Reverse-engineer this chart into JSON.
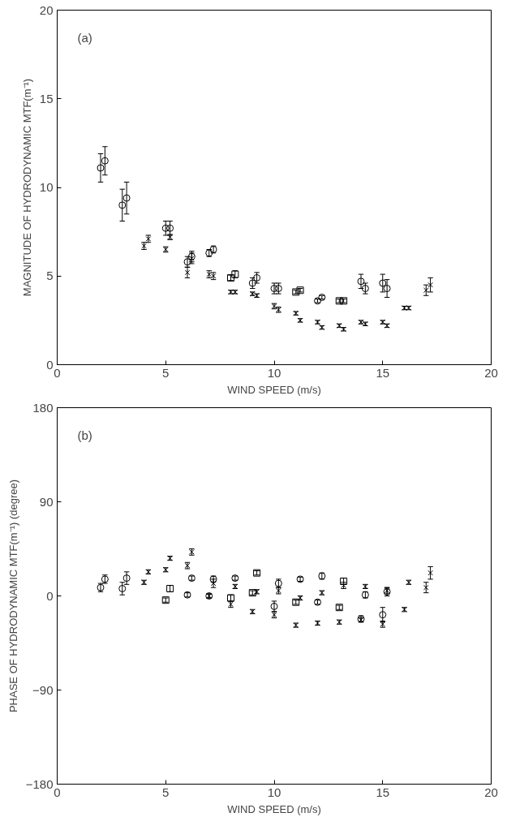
{
  "chart_data": [
    {
      "type": "scatter",
      "xlabel": "WIND SPEED (m/s)",
      "ylabel": "MAGNITUDE OF HYDRODYNAMIC MTF(m⁻¹)",
      "annotations": [
        "(a)"
      ],
      "xlim": [
        0,
        20
      ],
      "ylim": [
        0,
        20
      ],
      "xticks": [
        0,
        5,
        10,
        15,
        20
      ],
      "yticks": [
        0,
        5,
        10,
        15,
        20
      ],
      "grid": false,
      "series": [
        {
          "color": "#000000",
          "marker": "circle",
          "x": [
            2.0,
            2.2,
            3.0,
            3.2,
            5.0,
            5.2,
            6.0,
            6.2,
            7.0,
            7.2,
            9.0,
            9.2,
            10.0,
            10.2,
            12.0,
            12.2,
            14.0,
            14.2,
            15.0,
            15.2
          ],
          "values": [
            11.1,
            11.5,
            9.0,
            9.4,
            7.7,
            7.7,
            5.8,
            6.1,
            6.3,
            6.5,
            4.6,
            4.9,
            4.3,
            4.3,
            3.6,
            3.8,
            4.7,
            4.3,
            4.6,
            4.3
          ],
          "errors": [
            0.8,
            0.8,
            0.9,
            0.9,
            0.4,
            0.4,
            0.3,
            0.3,
            0.2,
            0.2,
            0.3,
            0.3,
            0.3,
            0.3,
            0.1,
            0.1,
            0.4,
            0.3,
            0.5,
            0.5
          ]
        },
        {
          "color": "#000000",
          "marker": "cross",
          "x": [
            4.0,
            4.2,
            5.0,
            5.2,
            6.0,
            6.2,
            7.0,
            7.2,
            8.0,
            8.2,
            9.0,
            9.2,
            10.0,
            10.2,
            11.0,
            11.2,
            12.0,
            12.2,
            13.0,
            13.2,
            14.0,
            14.2,
            15.0,
            15.2,
            16.0,
            16.2,
            17.0,
            17.2
          ],
          "values": [
            6.7,
            7.1,
            6.5,
            7.2,
            5.2,
            6.0,
            5.1,
            5.0,
            4.1,
            4.1,
            4.0,
            3.9,
            3.3,
            3.1,
            2.9,
            2.5,
            2.4,
            2.1,
            2.2,
            2.0,
            2.4,
            2.3,
            2.4,
            2.2,
            3.2,
            3.2,
            4.2,
            4.5
          ],
          "errors": [
            0.2,
            0.2,
            0.15,
            0.15,
            0.3,
            0.3,
            0.2,
            0.2,
            0.1,
            0.1,
            0.1,
            0.1,
            0.15,
            0.15,
            0.1,
            0.1,
            0.1,
            0.1,
            0.1,
            0.1,
            0.1,
            0.1,
            0.1,
            0.1,
            0.1,
            0.1,
            0.3,
            0.4
          ]
        },
        {
          "color": "#000000",
          "marker": "square",
          "x": [
            8.0,
            8.2,
            11.0,
            11.2,
            13.0,
            13.2
          ],
          "values": [
            4.9,
            5.1,
            4.1,
            4.2,
            3.6,
            3.6
          ],
          "errors": [
            0.15,
            0.2,
            0.1,
            0.1,
            0.1,
            0.1
          ]
        }
      ]
    },
    {
      "type": "scatter",
      "xlabel": "WIND SPEED (m/s)",
      "ylabel": "PHASE OF HYDRODYNAMIC MTF(m⁻¹) (degree)",
      "annotations": [
        "(b)"
      ],
      "xlim": [
        0,
        20
      ],
      "ylim": [
        -180,
        180
      ],
      "xticks": [
        0,
        5,
        10,
        15,
        20
      ],
      "yticks": [
        -180,
        -90,
        0,
        90,
        180
      ],
      "grid": false,
      "series": [
        {
          "color": "#000000",
          "marker": "circle",
          "x": [
            2.0,
            2.2,
            3.0,
            3.2,
            6.0,
            6.2,
            7.0,
            7.2,
            8.2,
            10.0,
            10.2,
            11.2,
            12.0,
            12.2,
            14.0,
            14.2,
            15.0,
            15.2
          ],
          "values": [
            8,
            16,
            7,
            17,
            1,
            17,
            0,
            16,
            17,
            -10,
            12,
            16,
            -6,
            19,
            -22,
            1,
            -18,
            4
          ],
          "errors": [
            4,
            4,
            6,
            6,
            2,
            2,
            2,
            3,
            2,
            5,
            4,
            2,
            2,
            3,
            3,
            3,
            7,
            4
          ]
        },
        {
          "color": "#000000",
          "marker": "cross",
          "x": [
            4.0,
            4.2,
            5.0,
            5.2,
            6.0,
            6.2,
            7.0,
            7.2,
            8.0,
            8.2,
            9.0,
            9.2,
            10.0,
            10.2,
            11.0,
            11.2,
            12.0,
            12.2,
            13.0,
            13.2,
            14.0,
            14.2,
            15.0,
            15.2,
            16.0,
            16.2,
            17.0,
            17.2
          ],
          "values": [
            13,
            23,
            25,
            36,
            29,
            42,
            0,
            12,
            -8,
            9,
            -15,
            4,
            -18,
            5,
            -28,
            -2,
            -26,
            3,
            -25,
            10,
            -23,
            9,
            -27,
            5,
            -13,
            13,
            8,
            22
          ],
          "errors": [
            2,
            2,
            2,
            2,
            3,
            3,
            2,
            4,
            3,
            2,
            2,
            2,
            3,
            3,
            2,
            2,
            2,
            2,
            2,
            3,
            2,
            2,
            3,
            3,
            2,
            2,
            5,
            6
          ]
        },
        {
          "color": "#000000",
          "marker": "square",
          "x": [
            5.0,
            5.2,
            8.0,
            9.0,
            9.2,
            11.0,
            13.0,
            13.2
          ],
          "values": [
            -4,
            7,
            -2,
            3,
            22,
            -6,
            -11,
            14
          ],
          "errors": [
            2,
            3,
            3,
            2,
            2,
            2,
            2,
            3
          ]
        }
      ]
    }
  ]
}
